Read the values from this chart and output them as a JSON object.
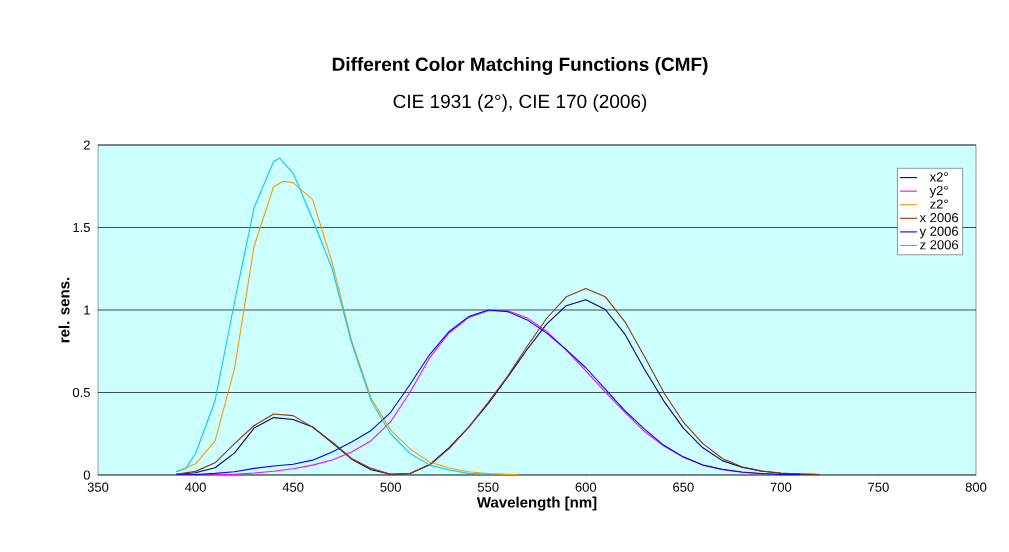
{
  "chart_data": {
    "type": "line",
    "title": "Different Color Matching Functions (CMF)",
    "subtitle": "CIE 1931 (2°),  CIE 170 (2006)",
    "xlabel": "Wavelength [nm]",
    "ylabel": "rel. sens.",
    "xlim": [
      350,
      800
    ],
    "xticks": [
      350,
      400,
      450,
      500,
      550,
      600,
      650,
      700,
      750,
      800
    ],
    "ylim": [
      0,
      2
    ],
    "yticks": [
      0,
      0.5,
      1,
      1.5,
      2
    ],
    "grid": "y",
    "legend": "top right",
    "marker": "none",
    "line_style": "solid",
    "series": [
      {
        "name": "x2°",
        "color": "#000080",
        "x": [
          390,
          400,
          410,
          420,
          430,
          440,
          450,
          460,
          470,
          480,
          490,
          500,
          510,
          520,
          530,
          540,
          550,
          560,
          570,
          580,
          590,
          600,
          610,
          620,
          630,
          640,
          650,
          660,
          670,
          680,
          690,
          700,
          710,
          720
        ],
        "values": [
          0.004,
          0.014,
          0.044,
          0.134,
          0.284,
          0.348,
          0.336,
          0.291,
          0.195,
          0.096,
          0.032,
          0.005,
          0.009,
          0.063,
          0.166,
          0.29,
          0.433,
          0.595,
          0.762,
          0.916,
          1.026,
          1.062,
          1.003,
          0.854,
          0.642,
          0.448,
          0.284,
          0.165,
          0.087,
          0.047,
          0.023,
          0.011,
          0.006,
          0.003
        ]
      },
      {
        "name": "y2°",
        "color": "#ff00ff",
        "x": [
          390,
          400,
          410,
          420,
          430,
          440,
          450,
          460,
          470,
          480,
          490,
          500,
          510,
          520,
          530,
          540,
          550,
          560,
          570,
          580,
          590,
          600,
          610,
          620,
          630,
          640,
          650,
          660,
          670,
          680,
          690
        ],
        "values": [
          0,
          0,
          0.001,
          0.004,
          0.012,
          0.023,
          0.038,
          0.06,
          0.091,
          0.139,
          0.208,
          0.323,
          0.503,
          0.71,
          0.862,
          0.954,
          0.995,
          0.995,
          0.952,
          0.87,
          0.757,
          0.631,
          0.503,
          0.381,
          0.265,
          0.175,
          0.107,
          0.061,
          0.032,
          0.017,
          0.008
        ]
      },
      {
        "name": "z2°",
        "color": "#ff9900",
        "x": [
          390,
          400,
          410,
          420,
          430,
          440,
          445,
          450,
          460,
          470,
          480,
          490,
          500,
          510,
          520,
          530,
          540,
          550,
          560,
          565
        ],
        "values": [
          0.02,
          0.068,
          0.207,
          0.646,
          1.386,
          1.747,
          1.78,
          1.772,
          1.669,
          1.288,
          0.813,
          0.465,
          0.272,
          0.158,
          0.078,
          0.042,
          0.02,
          0.009,
          0.004,
          0.002
        ]
      },
      {
        "name": "x 2006",
        "color": "#993300",
        "x": [
          390,
          400,
          410,
          420,
          430,
          440,
          450,
          460,
          470,
          480,
          490,
          500,
          510,
          520,
          530,
          540,
          550,
          560,
          570,
          580,
          590,
          600,
          610,
          620,
          630,
          640,
          650,
          660,
          670,
          680,
          690,
          700,
          710,
          720
        ],
        "values": [
          0.004,
          0.022,
          0.074,
          0.19,
          0.3,
          0.37,
          0.36,
          0.29,
          0.2,
          0.1,
          0.04,
          0.005,
          0.01,
          0.06,
          0.16,
          0.29,
          0.44,
          0.6,
          0.78,
          0.95,
          1.08,
          1.13,
          1.08,
          0.93,
          0.72,
          0.5,
          0.32,
          0.19,
          0.1,
          0.05,
          0.025,
          0.012,
          0.006,
          0.003
        ]
      },
      {
        "name": "y 2006",
        "color": "#0000ff",
        "x": [
          390,
          400,
          410,
          420,
          430,
          440,
          450,
          460,
          470,
          480,
          490,
          500,
          510,
          520,
          530,
          540,
          550,
          560,
          570,
          580,
          590,
          600,
          610,
          620,
          630,
          640,
          650,
          660,
          670,
          680,
          690,
          700,
          710
        ],
        "values": [
          0,
          0.003,
          0.01,
          0.02,
          0.04,
          0.055,
          0.065,
          0.09,
          0.14,
          0.2,
          0.27,
          0.38,
          0.55,
          0.73,
          0.87,
          0.96,
          1.0,
          0.99,
          0.94,
          0.86,
          0.76,
          0.65,
          0.52,
          0.39,
          0.28,
          0.18,
          0.11,
          0.06,
          0.035,
          0.018,
          0.009,
          0.004,
          0.002
        ]
      },
      {
        "name": "z 2006",
        "color": "#00ccff",
        "x": [
          390,
          395,
          400,
          410,
          420,
          430,
          440,
          443,
          450,
          460,
          470,
          480,
          490,
          500,
          510,
          520,
          530,
          540,
          550
        ],
        "values": [
          0.02,
          0.04,
          0.13,
          0.45,
          1.05,
          1.62,
          1.9,
          1.92,
          1.83,
          1.55,
          1.25,
          0.8,
          0.45,
          0.25,
          0.13,
          0.06,
          0.03,
          0.01,
          0.005
        ]
      }
    ]
  }
}
